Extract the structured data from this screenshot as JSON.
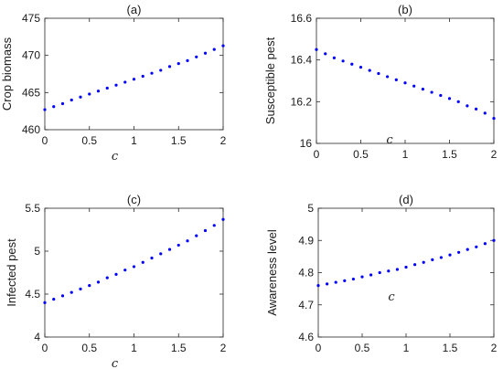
{
  "chart_data": [
    {
      "type": "scatter",
      "title": "(a)",
      "xlabel": "c",
      "ylabel": "Crop biomass",
      "xlim": [
        0,
        2
      ],
      "ylim": [
        460,
        475
      ],
      "xticks": [
        "0",
        "0.5",
        "1",
        "1.5",
        "2"
      ],
      "yticks": [
        "460",
        "465",
        "470",
        "475"
      ],
      "grid": false,
      "color": "#0000ff",
      "series": [
        {
          "x": [
            0,
            0.1,
            0.2,
            0.3,
            0.4,
            0.5,
            0.6,
            0.7,
            0.8,
            0.9,
            1.0,
            1.1,
            1.2,
            1.3,
            1.4,
            1.5,
            1.6,
            1.7,
            1.8,
            1.9,
            2.0
          ],
          "y": [
            462.7,
            463.1,
            463.5,
            464.0,
            464.4,
            464.8,
            465.2,
            465.6,
            466.0,
            466.4,
            466.8,
            467.2,
            467.6,
            468.0,
            468.5,
            468.9,
            469.3,
            469.8,
            470.3,
            470.8,
            471.3
          ]
        }
      ]
    },
    {
      "type": "scatter",
      "title": "(b)",
      "xlabel": "c",
      "ylabel": "Susceptible pest",
      "xlim": [
        0,
        2
      ],
      "ylim": [
        16,
        16.6
      ],
      "xticks": [
        "0",
        "0.5",
        "1",
        "1.5",
        "2"
      ],
      "yticks": [
        "16",
        "16.2",
        "16.4",
        "16.6"
      ],
      "grid": false,
      "color": "#0000ff",
      "series": [
        {
          "x": [
            0,
            0.1,
            0.2,
            0.3,
            0.4,
            0.5,
            0.6,
            0.7,
            0.8,
            0.9,
            1.0,
            1.1,
            1.2,
            1.3,
            1.4,
            1.5,
            1.6,
            1.7,
            1.8,
            1.9,
            2.0
          ],
          "y": [
            16.45,
            16.43,
            16.41,
            16.395,
            16.38,
            16.365,
            16.35,
            16.335,
            16.32,
            16.305,
            16.29,
            16.275,
            16.26,
            16.245,
            16.23,
            16.215,
            16.2,
            16.18,
            16.165,
            16.145,
            16.12
          ]
        }
      ]
    },
    {
      "type": "scatter",
      "title": "(c)",
      "xlabel": "c",
      "ylabel": "Infected pest",
      "xlim": [
        0,
        2
      ],
      "ylim": [
        4,
        5.5
      ],
      "xticks": [
        "0",
        "0.5",
        "1",
        "1.5",
        "2"
      ],
      "yticks": [
        "4",
        "4.5",
        "5",
        "5.5"
      ],
      "grid": false,
      "color": "#0000ff",
      "series": [
        {
          "x": [
            0,
            0.1,
            0.2,
            0.3,
            0.4,
            0.5,
            0.6,
            0.7,
            0.8,
            0.9,
            1.0,
            1.1,
            1.2,
            1.3,
            1.4,
            1.5,
            1.6,
            1.7,
            1.8,
            1.9,
            2.0
          ],
          "y": [
            4.4,
            4.44,
            4.48,
            4.52,
            4.56,
            4.6,
            4.64,
            4.69,
            4.73,
            4.78,
            4.82,
            4.87,
            4.92,
            4.97,
            5.02,
            5.07,
            5.12,
            5.18,
            5.24,
            5.3,
            5.37
          ]
        }
      ]
    },
    {
      "type": "scatter",
      "title": "(d)",
      "xlabel": "c",
      "ylabel": "Awareness level",
      "xlim": [
        0,
        2
      ],
      "ylim": [
        4.6,
        5
      ],
      "xticks": [
        "0",
        "0.5",
        "1",
        "1.5",
        "2"
      ],
      "yticks": [
        "4.6",
        "4.7",
        "4.8",
        "4.9",
        "5"
      ],
      "grid": false,
      "color": "#0000ff",
      "series": [
        {
          "x": [
            0,
            0.1,
            0.2,
            0.3,
            0.4,
            0.5,
            0.6,
            0.7,
            0.8,
            0.9,
            1.0,
            1.1,
            1.2,
            1.3,
            1.4,
            1.5,
            1.6,
            1.7,
            1.8,
            1.9,
            2.0
          ],
          "y": [
            4.76,
            4.765,
            4.77,
            4.775,
            4.78,
            4.787,
            4.793,
            4.8,
            4.805,
            4.81,
            4.817,
            4.825,
            4.832,
            4.84,
            4.847,
            4.855,
            4.863,
            4.872,
            4.88,
            4.89,
            4.9
          ]
        }
      ]
    }
  ]
}
